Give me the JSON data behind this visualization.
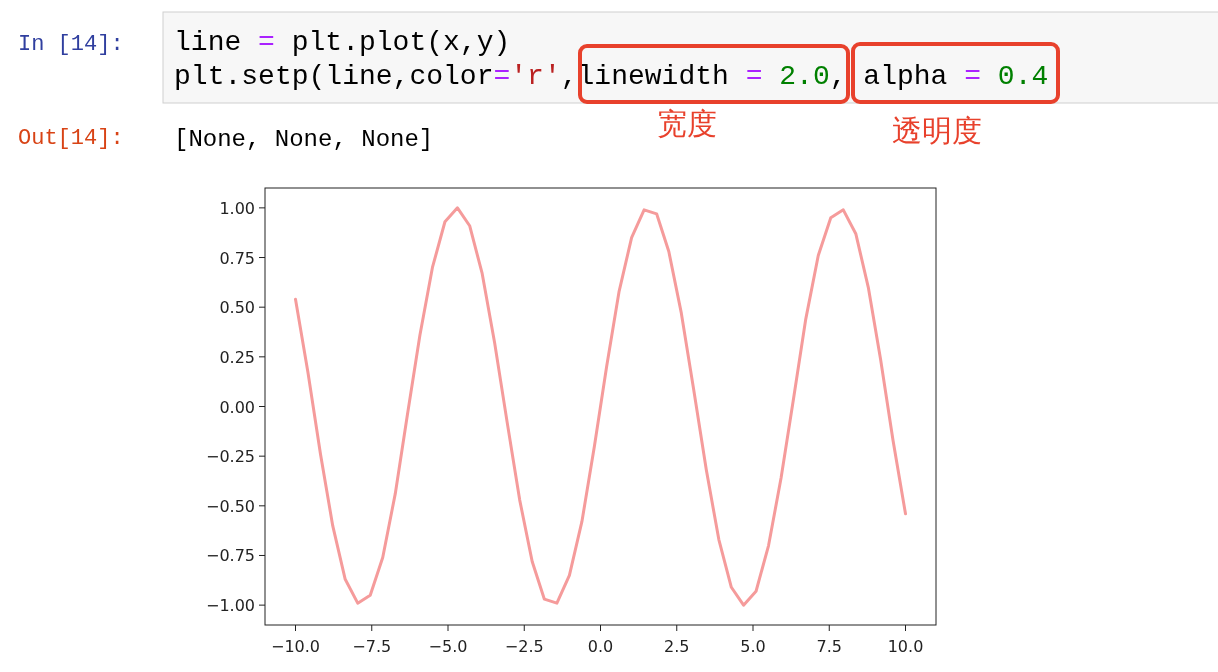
{
  "chart_data": {
    "type": "line",
    "x": [
      -10,
      -9.59,
      -9.18,
      -8.78,
      -8.37,
      -7.96,
      -7.55,
      -7.14,
      -6.73,
      -6.33,
      -5.92,
      -5.51,
      -5.1,
      -4.69,
      -4.29,
      -3.88,
      -3.47,
      -3.06,
      -2.65,
      -2.24,
      -1.84,
      -1.43,
      -1.02,
      -0.61,
      -0.2,
      0.2,
      0.61,
      1.02,
      1.43,
      1.84,
      2.24,
      2.65,
      3.06,
      3.47,
      3.88,
      4.29,
      4.69,
      5.1,
      5.51,
      5.92,
      6.33,
      6.73,
      7.14,
      7.55,
      7.96,
      8.37,
      8.78,
      9.18,
      9.59,
      10
    ],
    "series": [
      {
        "color": "#f59b9b",
        "values": [
          0.54,
          0.17,
          -0.24,
          -0.6,
          -0.87,
          -0.99,
          -0.95,
          -0.76,
          -0.44,
          -0.04,
          0.36,
          0.7,
          0.93,
          1.0,
          0.91,
          0.67,
          0.32,
          -0.08,
          -0.47,
          -0.78,
          -0.97,
          -0.99,
          -0.85,
          -0.58,
          -0.2,
          0.2,
          0.58,
          0.85,
          0.99,
          0.97,
          0.78,
          0.47,
          0.08,
          -0.32,
          -0.67,
          -0.91,
          -1.0,
          -0.93,
          -0.7,
          -0.36,
          0.04,
          0.44,
          0.76,
          0.95,
          0.99,
          0.87,
          0.6,
          0.24,
          -0.17,
          -0.54
        ]
      }
    ],
    "xlim": [
      -11,
      11
    ],
    "ylim": [
      -1.1,
      1.1
    ],
    "xticks": [
      {
        "value": -10,
        "label": "−10.0"
      },
      {
        "value": -7.5,
        "label": "−7.5"
      },
      {
        "value": -5,
        "label": "−5.0"
      },
      {
        "value": -2.5,
        "label": "−2.5"
      },
      {
        "value": 0,
        "label": "0.0"
      },
      {
        "value": 2.5,
        "label": "2.5"
      },
      {
        "value": 5,
        "label": "5.0"
      },
      {
        "value": 7.5,
        "label": "7.5"
      },
      {
        "value": 10,
        "label": "10.0"
      }
    ],
    "yticks": [
      {
        "value": -1,
        "label": "−1.00"
      },
      {
        "value": -0.75,
        "label": "−0.75"
      },
      {
        "value": -0.5,
        "label": "−0.50"
      },
      {
        "value": -0.25,
        "label": "−0.25"
      },
      {
        "value": 0,
        "label": "0.00"
      },
      {
        "value": 0.25,
        "label": "0.25"
      },
      {
        "value": 0.5,
        "label": "0.50"
      },
      {
        "value": 0.75,
        "label": "0.75"
      },
      {
        "value": 1,
        "label": "1.00"
      }
    ],
    "grid": false,
    "line_style": "solid",
    "annotations": [
      "In [14]:",
      "line = plt.plot(x,y)",
      "plt.setp(line,color='r',linewidth = 2.0, alpha = 0.4",
      "Out[14]:",
      "[None, None, None]",
      "宽度",
      "透明度"
    ]
  }
}
